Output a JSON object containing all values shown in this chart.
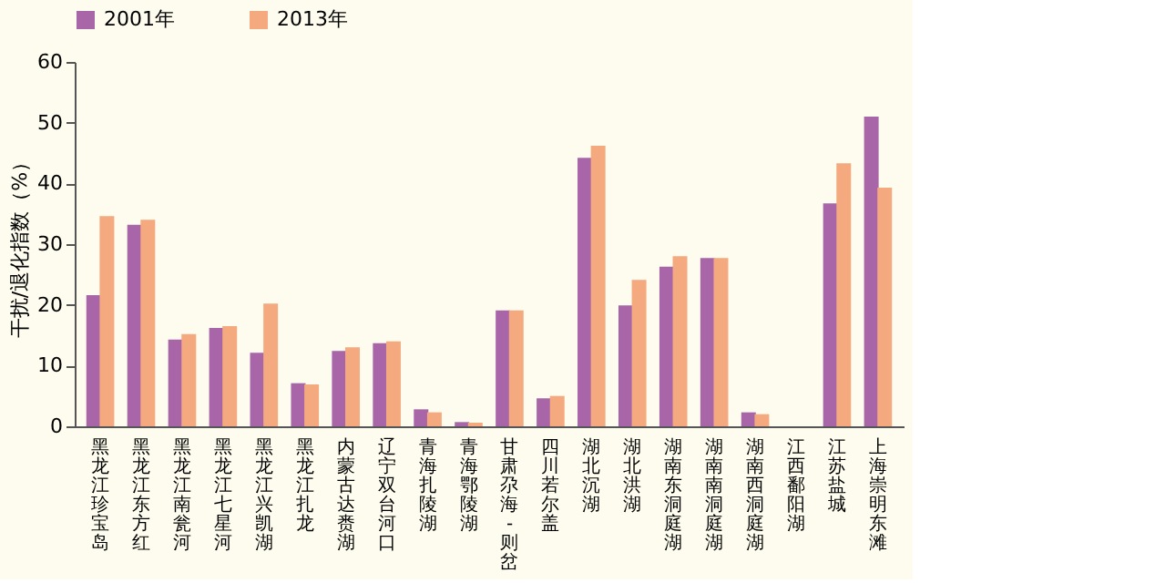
{
  "chart_data": {
    "type": "bar",
    "ylabel": "干扰/退化指数（%）",
    "categories": [
      "黑龙江珍宝岛",
      "黑龙江东方红",
      "黑龙江南瓮河",
      "黑龙江七星河",
      "黑龙江兴凯湖",
      "黑龙江扎龙",
      "内蒙古达赉湖",
      "辽宁双台河口",
      "青海扎陵湖",
      "青海鄂陵湖",
      "甘肃尕海-则岔",
      "四川若尔盖",
      "湖北沉湖",
      "湖北洪湖",
      "湖南东洞庭湖",
      "湖南南洞庭湖",
      "湖南西洞庭湖",
      "江西鄱阳湖",
      "江苏盐城",
      "上海崇明东滩"
    ],
    "series": [
      {
        "name": "2001年",
        "color": "#a865a8",
        "values": [
          21.6,
          33.2,
          14.3,
          16.2,
          12.1,
          7.1,
          12.4,
          13.7,
          2.8,
          0.7,
          19.1,
          4.6,
          44.2,
          19.9,
          26.3,
          27.7,
          2.3,
          null,
          36.7,
          51.0
        ]
      },
      {
        "name": "2013年",
        "color": "#f4a97f",
        "values": [
          34.6,
          34.0,
          15.2,
          16.5,
          20.2,
          6.9,
          13.0,
          14.0,
          2.3,
          0.6,
          19.1,
          5.0,
          46.2,
          24.1,
          28.0,
          27.7,
          2.0,
          null,
          43.3,
          39.3
        ]
      }
    ],
    "ylim": [
      0,
      60
    ],
    "yticks": [
      0,
      10,
      20,
      30,
      40,
      50,
      60
    ],
    "grid": false,
    "legend": "top"
  }
}
